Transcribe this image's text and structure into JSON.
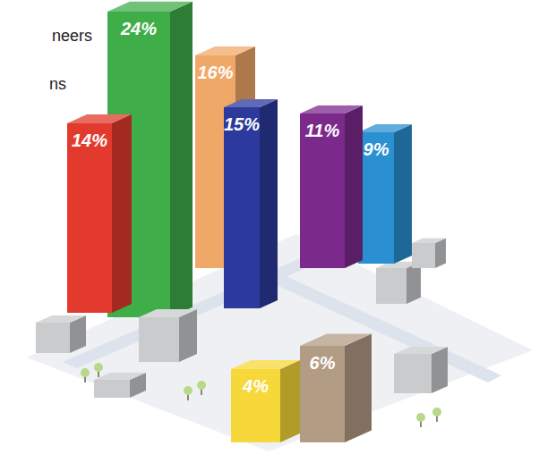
{
  "chart_data": {
    "type": "bar",
    "categories": [
      null,
      null,
      null,
      null,
      null,
      null,
      null,
      null
    ],
    "values": [
      14,
      24,
      16,
      15,
      11,
      9,
      4,
      6
    ],
    "value_labels": [
      "14%",
      "24%",
      "16%",
      "15%",
      "11%",
      "9%",
      "4%",
      "6%"
    ],
    "colors": [
      "#e23b2e",
      "#3fae49",
      "#f0a868",
      "#2b3a9c",
      "#7b2a8c",
      "#2a90d2",
      "#f6d83a",
      "#b39c84"
    ],
    "data_labels": true,
    "tick_labels": false,
    "annotations": [
      "neers",
      "ns"
    ]
  }
}
